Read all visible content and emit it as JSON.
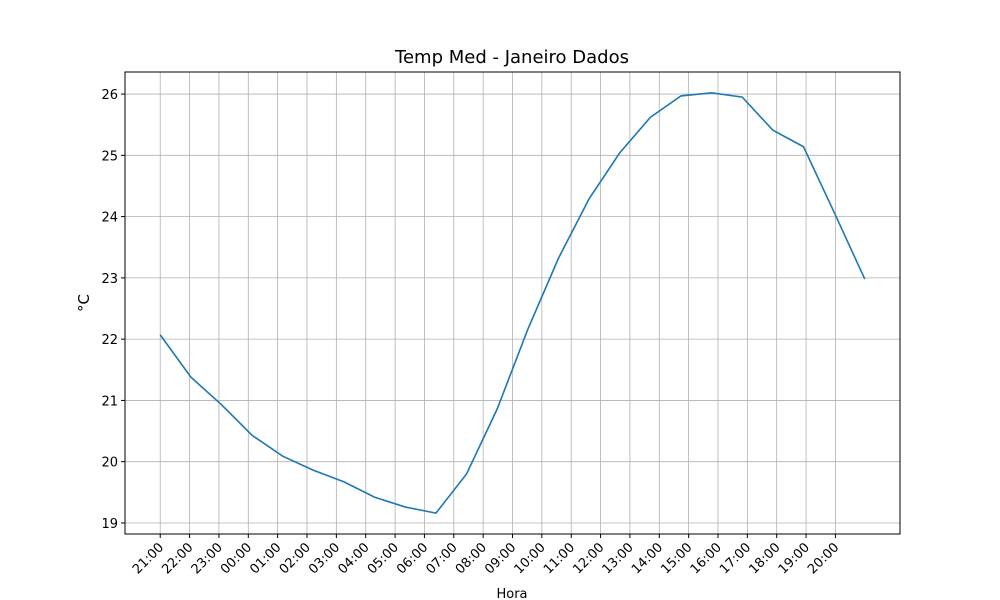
{
  "chart_data": {
    "type": "line",
    "title": "Temp Med - Janeiro Dados",
    "x_label": "Hora",
    "y_label": "°C",
    "x": [
      0,
      1,
      2,
      3,
      4,
      5,
      6,
      7,
      8,
      9,
      10,
      11,
      12,
      13,
      14,
      15,
      16,
      17,
      18,
      19,
      20,
      21,
      22,
      23
    ],
    "series": [
      {
        "color": "#1f77b4",
        "values": [
          22.07,
          21.38,
          20.93,
          20.43,
          20.09,
          19.86,
          19.67,
          19.42,
          19.26,
          19.16,
          19.8,
          20.86,
          22.16,
          23.32,
          24.29,
          25.04,
          25.62,
          25.97,
          26.02,
          25.95,
          25.41,
          25.14,
          24.07,
          22.98
        ]
      }
    ],
    "xlim": [
      -1.15,
      24.15
    ],
    "xticks": [
      {
        "value": 0,
        "label": "21:00"
      },
      {
        "value": 0.958,
        "label": "22:00"
      },
      {
        "value": 1.917,
        "label": "23:00"
      },
      {
        "value": 2.875,
        "label": "00:00"
      },
      {
        "value": 3.833,
        "label": "01:00"
      },
      {
        "value": 4.792,
        "label": "02:00"
      },
      {
        "value": 5.75,
        "label": "03:00"
      },
      {
        "value": 6.708,
        "label": "04:00"
      },
      {
        "value": 7.667,
        "label": "05:00"
      },
      {
        "value": 8.625,
        "label": "06:00"
      },
      {
        "value": 9.583,
        "label": "07:00"
      },
      {
        "value": 10.542,
        "label": "08:00"
      },
      {
        "value": 11.5,
        "label": "09:00"
      },
      {
        "value": 12.458,
        "label": "10:00"
      },
      {
        "value": 13.417,
        "label": "11:00"
      },
      {
        "value": 14.375,
        "label": "12:00"
      },
      {
        "value": 15.333,
        "label": "13:00"
      },
      {
        "value": 16.292,
        "label": "14:00"
      },
      {
        "value": 17.25,
        "label": "15:00"
      },
      {
        "value": 18.208,
        "label": "16:00"
      },
      {
        "value": 19.167,
        "label": "17:00"
      },
      {
        "value": 20.125,
        "label": "18:00"
      },
      {
        "value": 21.083,
        "label": "19:00"
      },
      {
        "value": 22.042,
        "label": "20:00"
      }
    ],
    "ylim": [
      18.82,
      26.36
    ],
    "yticks": [
      19,
      20,
      21,
      22,
      23,
      24,
      25,
      26
    ],
    "grid": true
  }
}
